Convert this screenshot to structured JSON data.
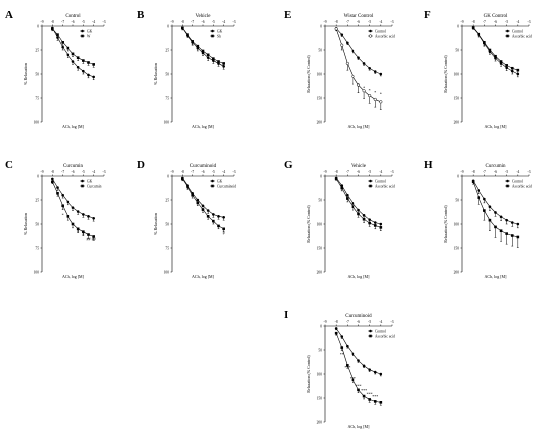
{
  "figure": {
    "panels": [
      {
        "letter": "A",
        "title": "Control",
        "ylabel": "% Relaxation",
        "xlabel": "ACh, log [M]",
        "x_ticks": [
          "-9",
          "-8",
          "-7",
          "-6",
          "-5",
          "-4",
          "-3"
        ],
        "y_ticks": [
          "0",
          "25",
          "50",
          "75",
          "100"
        ],
        "legend": [
          {
            "label": "GK",
            "marker": "filled-circle"
          },
          {
            "label": "W",
            "marker": "filled-square"
          }
        ],
        "annotations": []
      },
      {
        "letter": "B",
        "title": "Vehicle",
        "ylabel": "% Relaxation",
        "xlabel": "ACh, log [M]",
        "x_ticks": [
          "-9",
          "-8",
          "-7",
          "-6",
          "-5",
          "-4",
          "-3"
        ],
        "y_ticks": [
          "0",
          "25",
          "50",
          "75",
          "100"
        ],
        "legend": [
          {
            "label": "GK",
            "marker": "filled-circle"
          },
          {
            "label": "Sh",
            "marker": "filled-square"
          }
        ],
        "annotations": []
      },
      {
        "letter": "C",
        "title": "Curcumin",
        "ylabel": "% Relaxation",
        "xlabel": "ACh, log [M]",
        "x_ticks": [
          "-9",
          "-8",
          "-7",
          "-6",
          "-5",
          "-4",
          "-3"
        ],
        "y_ticks": [
          "0",
          "25",
          "50",
          "75",
          "100"
        ],
        "legend": [
          {
            "label": "GK",
            "marker": "filled-circle"
          },
          {
            "label": "Curcumin",
            "marker": "filled-square"
          }
        ],
        "annotations": [
          {
            "text": "*",
            "x": -7,
            "y": 42
          },
          {
            "text": "#",
            "x": -5.5,
            "y": 59
          },
          {
            "text": "#",
            "x": -5,
            "y": 62
          },
          {
            "text": "##",
            "x": -4.5,
            "y": 67
          },
          {
            "text": "##",
            "x": -4,
            "y": 67
          }
        ]
      },
      {
        "letter": "D",
        "title": "Curcuminoid",
        "ylabel": "% Relaxation",
        "xlabel": "ACh, log [M]",
        "x_ticks": [
          "-9",
          "-8",
          "-7",
          "-6",
          "-5",
          "-4",
          "-3"
        ],
        "y_ticks": [
          "0",
          "25",
          "50",
          "75",
          "100"
        ],
        "legend": [
          {
            "label": "GK",
            "marker": "filled-circle"
          },
          {
            "label": "Curcuminoid",
            "marker": "filled-square"
          }
        ],
        "annotations": [
          {
            "text": "#",
            "x": -4,
            "y": 61
          }
        ]
      },
      {
        "letter": "E",
        "title": "Wistar Control",
        "ylabel": "Relaxation (% Control)",
        "xlabel": "ACh, log [M]",
        "x_ticks": [
          "-9",
          "-8",
          "-7",
          "-6",
          "-5",
          "-4",
          "-3"
        ],
        "y_ticks": [
          "0",
          "50",
          "100",
          "150",
          "200"
        ],
        "legend": [
          {
            "label": "Control",
            "marker": "filled-circle"
          },
          {
            "label": "Ascorbic acid",
            "marker": "open-circle"
          }
        ],
        "annotations": [
          {
            "text": "*",
            "x": -6,
            "y": 125
          },
          {
            "text": "*",
            "x": -5.5,
            "y": 132
          },
          {
            "text": "*",
            "x": -5,
            "y": 138
          },
          {
            "text": "*",
            "x": -4.5,
            "y": 142
          },
          {
            "text": "*",
            "x": -4,
            "y": 145
          }
        ]
      },
      {
        "letter": "F",
        "title": "GK Control",
        "ylabel": "Relaxation (% Control)",
        "xlabel": "ACh, log [M]",
        "x_ticks": [
          "-9",
          "-8",
          "-7",
          "-6",
          "-5",
          "-4",
          "-3"
        ],
        "y_ticks": [
          "0",
          "50",
          "100",
          "150",
          "200"
        ],
        "legend": [
          {
            "label": "Control",
            "marker": "filled-circle"
          },
          {
            "label": "Ascorbic acid",
            "marker": "filled-square"
          }
        ],
        "annotations": []
      },
      {
        "letter": "G",
        "title": "Vehicle",
        "ylabel": "Relaxation (% Control)",
        "xlabel": "ACh, log [M]",
        "x_ticks": [
          "-9",
          "-8",
          "-7",
          "-6",
          "-5",
          "-4",
          "-3"
        ],
        "y_ticks": [
          "0",
          "50",
          "100",
          "150",
          "200"
        ],
        "legend": [
          {
            "label": "Control",
            "marker": "filled-circle"
          },
          {
            "label": "Ascorbic acid",
            "marker": "filled-square"
          }
        ],
        "annotations": []
      },
      {
        "letter": "H",
        "title": "Curcumin",
        "ylabel": "Relaxation (% Control)",
        "xlabel": "ACh, log [M]",
        "x_ticks": [
          "-9",
          "-8",
          "-7",
          "-6",
          "-5",
          "-4",
          "-3"
        ],
        "y_ticks": [
          "0",
          "50",
          "100",
          "150",
          "200"
        ],
        "legend": [
          {
            "label": "Control",
            "marker": "filled-circle"
          },
          {
            "label": "Ascorbic acid",
            "marker": "filled-square"
          }
        ],
        "annotations": []
      },
      {
        "letter": "I",
        "title": "Curcuminoid",
        "ylabel": "Relaxation (% Control)",
        "xlabel": "ACh, log [M]",
        "x_ticks": [
          "-9",
          "-8",
          "-7",
          "-6",
          "-5",
          "-4",
          "-3"
        ],
        "y_ticks": [
          "0",
          "50",
          "100",
          "150",
          "200"
        ],
        "legend": [
          {
            "label": "Control",
            "marker": "filled-circle"
          },
          {
            "label": "Ascorbic acid",
            "marker": "filled-square"
          }
        ],
        "annotations": [
          {
            "text": "**",
            "x": -7.5,
            "y": 62
          },
          {
            "text": "***",
            "x": -7,
            "y": 90
          },
          {
            "text": "***",
            "x": -6.5,
            "y": 112
          },
          {
            "text": "***",
            "x": -6,
            "y": 128
          },
          {
            "text": "***",
            "x": -5.5,
            "y": 138
          },
          {
            "text": "***",
            "x": -5,
            "y": 145
          },
          {
            "text": "***",
            "x": -4.5,
            "y": 150
          }
        ]
      }
    ]
  },
  "chart_data": [
    {
      "panel": "A",
      "type": "line",
      "title": "Control",
      "xlabel": "ACh, log [M]",
      "ylabel": "% Relaxation",
      "xlim": [
        -9,
        -3
      ],
      "ylim": [
        0,
        100
      ],
      "y_inverted": true,
      "x": [
        -8,
        -7.5,
        -7,
        -6.5,
        -6,
        -5.5,
        -5,
        -4.5,
        -4
      ],
      "series": [
        {
          "name": "GK",
          "values": [
            2,
            12,
            22,
            30,
            37,
            43,
            47,
            51,
            53
          ],
          "error": [
            2,
            3,
            3,
            3,
            3,
            3,
            3,
            3,
            3
          ]
        },
        {
          "name": "W",
          "values": [
            3,
            9,
            17,
            23,
            29,
            33,
            36,
            38,
            40
          ],
          "error": [
            2,
            3,
            3,
            3,
            3,
            3,
            3,
            3,
            3
          ]
        }
      ]
    },
    {
      "panel": "B",
      "type": "line",
      "title": "Vehicle",
      "xlabel": "ACh, log [M]",
      "ylabel": "% Relaxation",
      "xlim": [
        -9,
        -3
      ],
      "ylim": [
        0,
        100
      ],
      "y_inverted": true,
      "x": [
        -8,
        -7.5,
        -7,
        -6.5,
        -6,
        -5.5,
        -5,
        -4.5,
        -4
      ],
      "series": [
        {
          "name": "GK",
          "values": [
            2,
            10,
            17,
            23,
            28,
            33,
            36,
            39,
            42
          ],
          "error": [
            2,
            2,
            3,
            3,
            3,
            3,
            3,
            3,
            3
          ]
        },
        {
          "name": "Sh",
          "values": [
            2,
            9,
            16,
            21,
            26,
            30,
            34,
            37,
            39
          ],
          "error": [
            2,
            2,
            3,
            3,
            3,
            3,
            3,
            3,
            3
          ]
        }
      ]
    },
    {
      "panel": "C",
      "type": "line",
      "title": "Curcumin",
      "xlabel": "ACh, log [M]",
      "ylabel": "% Relaxation",
      "xlim": [
        -9,
        -3
      ],
      "ylim": [
        0,
        100
      ],
      "y_inverted": true,
      "x": [
        -8,
        -7.5,
        -7,
        -6.5,
        -6,
        -5.5,
        -5,
        -4.5,
        -4
      ],
      "series": [
        {
          "name": "GK",
          "values": [
            3,
            12,
            20,
            27,
            33,
            37,
            40,
            42,
            44
          ],
          "error": [
            2,
            3,
            3,
            3,
            3,
            3,
            3,
            3,
            3
          ]
        },
        {
          "name": "Curcumin",
          "values": [
            6,
            18,
            31,
            42,
            50,
            55,
            58,
            61,
            63
          ],
          "error": [
            2,
            3,
            4,
            4,
            4,
            4,
            4,
            4,
            4
          ]
        }
      ]
    },
    {
      "panel": "D",
      "type": "line",
      "title": "Curcuminoid",
      "xlabel": "ACh, log [M]",
      "ylabel": "% Relaxation",
      "xlim": [
        -9,
        -3
      ],
      "ylim": [
        0,
        100
      ],
      "y_inverted": true,
      "x": [
        -8,
        -7.5,
        -7,
        -6.5,
        -6,
        -5.5,
        -5,
        -4.5,
        -4
      ],
      "series": [
        {
          "name": "GK",
          "values": [
            2,
            10,
            18,
            25,
            31,
            36,
            40,
            42,
            43
          ],
          "error": [
            2,
            3,
            3,
            3,
            3,
            3,
            3,
            3,
            3
          ]
        },
        {
          "name": "Curcuminoid",
          "values": [
            3,
            11,
            20,
            28,
            35,
            42,
            47,
            52,
            55
          ],
          "error": [
            2,
            3,
            3,
            3,
            3,
            3,
            3,
            3,
            3
          ]
        }
      ]
    },
    {
      "panel": "E",
      "type": "line",
      "title": "Wistar Control",
      "xlabel": "ACh, log [M]",
      "ylabel": "Relaxation (% Control)",
      "xlim": [
        -9,
        -3
      ],
      "ylim": [
        0,
        200
      ],
      "y_inverted": true,
      "x": [
        -8,
        -7.5,
        -7,
        -6.5,
        -6,
        -5.5,
        -5,
        -4.5,
        -4
      ],
      "series": [
        {
          "name": "Control",
          "values": [
            5,
            18,
            35,
            52,
            66,
            78,
            88,
            95,
            100
          ],
          "error": [
            3,
            4,
            4,
            4,
            4,
            4,
            4,
            4,
            4
          ]
        },
        {
          "name": "Ascorbic acid",
          "values": [
            6,
            40,
            78,
            105,
            123,
            135,
            145,
            153,
            158
          ],
          "error": [
            4,
            10,
            14,
            16,
            16,
            16,
            16,
            16,
            16
          ]
        }
      ]
    },
    {
      "panel": "F",
      "type": "line",
      "title": "GK Control",
      "xlabel": "ACh, log [M]",
      "ylabel": "Relaxation (% Control)",
      "xlim": [
        -9,
        -3
      ],
      "ylim": [
        0,
        200
      ],
      "y_inverted": true,
      "x": [
        -8,
        -7.5,
        -7,
        -6.5,
        -6,
        -5.5,
        -5,
        -4.5,
        -4
      ],
      "series": [
        {
          "name": "Control",
          "values": [
            4,
            18,
            36,
            53,
            67,
            78,
            87,
            94,
            100
          ],
          "error": [
            3,
            5,
            6,
            6,
            6,
            6,
            6,
            6,
            6
          ]
        },
        {
          "name": "Ascorbic acid",
          "values": [
            3,
            17,
            34,
            50,
            63,
            74,
            82,
            88,
            92
          ],
          "error": [
            3,
            5,
            6,
            6,
            6,
            6,
            6,
            6,
            6
          ]
        }
      ]
    },
    {
      "panel": "G",
      "type": "line",
      "title": "Vehicle",
      "xlabel": "ACh, log [M]",
      "ylabel": "Relaxation (% Control)",
      "xlim": [
        -9,
        -3
      ],
      "ylim": [
        0,
        200
      ],
      "y_inverted": true,
      "x": [
        -8,
        -7.5,
        -7,
        -6.5,
        -6,
        -5.5,
        -5,
        -4.5,
        -4
      ],
      "series": [
        {
          "name": "Control",
          "values": [
            4,
            20,
            40,
            57,
            71,
            82,
            91,
            97,
            100
          ],
          "error": [
            3,
            5,
            6,
            6,
            6,
            6,
            6,
            6,
            6
          ]
        },
        {
          "name": "Ascorbic acid",
          "values": [
            6,
            25,
            47,
            64,
            79,
            90,
            98,
            103,
            107
          ],
          "error": [
            3,
            6,
            7,
            7,
            7,
            7,
            7,
            7,
            7
          ]
        }
      ]
    },
    {
      "panel": "H",
      "type": "line",
      "title": "Curcumin",
      "xlabel": "ACh, log [M]",
      "ylabel": "Relaxation (% Control)",
      "xlim": [
        -9,
        -3
      ],
      "ylim": [
        0,
        200
      ],
      "y_inverted": true,
      "x": [
        -8,
        -7.5,
        -7,
        -6.5,
        -6,
        -5.5,
        -5,
        -4.5,
        -4
      ],
      "series": [
        {
          "name": "Control",
          "values": [
            10,
            30,
            48,
            64,
            76,
            85,
            92,
            97,
            100
          ],
          "error": [
            4,
            7,
            8,
            8,
            8,
            8,
            8,
            8,
            8
          ]
        },
        {
          "name": "Ascorbic acid",
          "values": [
            12,
            45,
            72,
            92,
            106,
            114,
            120,
            124,
            127
          ],
          "error": [
            5,
            14,
            20,
            22,
            22,
            22,
            22,
            22,
            22
          ]
        }
      ]
    },
    {
      "panel": "I",
      "type": "line",
      "title": "Curcuminoid",
      "xlabel": "ACh, log [M]",
      "ylabel": "Relaxation (% Control)",
      "xlim": [
        -9,
        -3
      ],
      "ylim": [
        0,
        200
      ],
      "y_inverted": true,
      "x": [
        -8,
        -7.5,
        -7,
        -6.5,
        -6,
        -5.5,
        -5,
        -4.5,
        -4
      ],
      "series": [
        {
          "name": "Control",
          "values": [
            5,
            22,
            42,
            58,
            72,
            83,
            91,
            96,
            100
          ],
          "error": [
            3,
            4,
            4,
            4,
            4,
            4,
            4,
            4,
            4
          ]
        },
        {
          "name": "Ascorbic acid",
          "values": [
            15,
            45,
            82,
            112,
            133,
            146,
            153,
            157,
            159
          ],
          "error": [
            4,
            6,
            6,
            6,
            6,
            6,
            6,
            6,
            6
          ]
        }
      ]
    }
  ]
}
